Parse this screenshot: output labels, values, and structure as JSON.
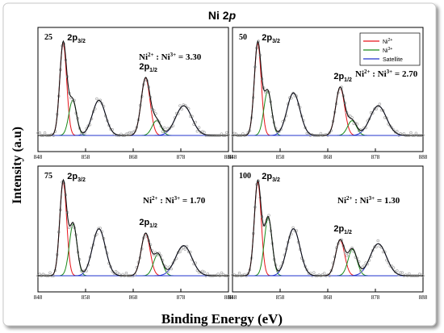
{
  "figure": {
    "title_main": "Ni 2",
    "title_italic": "p",
    "ylabel": "Intensity (a.u)",
    "xlabel": "Binding Energy (eV)"
  },
  "colors": {
    "ni2": "#e8141b",
    "ni3": "#1a8a1a",
    "satellite": "#2233cc",
    "envelope": "#111111",
    "baseline": "#cc33cc",
    "data": "#a8a8a8"
  },
  "legend": {
    "ni2_base": "Ni",
    "ni2_sup": "2+",
    "ni3_base": "Ni",
    "ni3_sup": "3+",
    "satellite": "Satellite"
  },
  "peak_labels": {
    "p32_main": "2p",
    "p32_sub": "3/2",
    "p12_main": "2p",
    "p12_sub": "1/2"
  },
  "chart_data": [
    {
      "type": "line",
      "panel": "25",
      "ratio_label": "Ni",
      "ratio_sup1": "2+",
      "ratio_mid": " : Ni",
      "ratio_sup2": "3+",
      "ratio_value": " = 3.30",
      "xlim": [
        848,
        888
      ],
      "xticks": [
        848,
        858,
        868,
        878,
        888
      ],
      "peaks": {
        "ni2": [
          {
            "center": 853.3,
            "height": 1.0,
            "fwhm": 1.7
          },
          {
            "center": 870.6,
            "height": 0.62,
            "fwhm": 2.2
          }
        ],
        "ni3": [
          {
            "center": 855.3,
            "height": 0.38,
            "fwhm": 1.9
          },
          {
            "center": 872.9,
            "height": 0.16,
            "fwhm": 2.2
          }
        ],
        "satellite": [
          {
            "center": 860.8,
            "height": 0.38,
            "fwhm": 3.2
          },
          {
            "center": 878.6,
            "height": 0.32,
            "fwhm": 4.0
          }
        ]
      }
    },
    {
      "type": "line",
      "panel": "50",
      "ratio_label": "Ni",
      "ratio_sup1": "2+",
      "ratio_mid": " : Ni",
      "ratio_sup2": "3+",
      "ratio_value": " = 2.70",
      "xlim": [
        848,
        888
      ],
      "xticks": [
        848,
        858,
        868,
        878,
        888
      ],
      "peaks": {
        "ni2": [
          {
            "center": 853.3,
            "height": 1.0,
            "fwhm": 1.7
          },
          {
            "center": 870.6,
            "height": 0.52,
            "fwhm": 2.2
          }
        ],
        "ni3": [
          {
            "center": 855.4,
            "height": 0.48,
            "fwhm": 1.9
          },
          {
            "center": 873.1,
            "height": 0.16,
            "fwhm": 2.2
          }
        ],
        "satellite": [
          {
            "center": 860.8,
            "height": 0.46,
            "fwhm": 3.2
          },
          {
            "center": 878.6,
            "height": 0.32,
            "fwhm": 4.0
          }
        ]
      }
    },
    {
      "type": "line",
      "panel": "75",
      "ratio_label": "Ni",
      "ratio_sup1": "2+",
      "ratio_mid": " : Ni",
      "ratio_sup2": "3+",
      "ratio_value": " = 1.70",
      "xlim": [
        848,
        888
      ],
      "xticks": [
        848,
        858,
        868,
        878,
        888
      ],
      "peaks": {
        "ni2": [
          {
            "center": 853.3,
            "height": 1.0,
            "fwhm": 1.7
          },
          {
            "center": 870.6,
            "height": 0.45,
            "fwhm": 2.2
          }
        ],
        "ni3": [
          {
            "center": 855.4,
            "height": 0.55,
            "fwhm": 1.9
          },
          {
            "center": 873.2,
            "height": 0.23,
            "fwhm": 2.2
          }
        ],
        "satellite": [
          {
            "center": 860.8,
            "height": 0.5,
            "fwhm": 3.2
          },
          {
            "center": 878.6,
            "height": 0.32,
            "fwhm": 4.0
          }
        ]
      }
    },
    {
      "type": "line",
      "panel": "100",
      "ratio_label": "Ni",
      "ratio_sup1": "2+",
      "ratio_mid": " : Ni",
      "ratio_sup2": "3+",
      "ratio_value": " = 1.30",
      "xlim": [
        848,
        888
      ],
      "xticks": [
        848,
        858,
        868,
        878,
        888
      ],
      "peaks": {
        "ni2": [
          {
            "center": 853.3,
            "height": 1.0,
            "fwhm": 1.7
          },
          {
            "center": 870.6,
            "height": 0.38,
            "fwhm": 2.2
          }
        ],
        "ni3": [
          {
            "center": 855.5,
            "height": 0.62,
            "fwhm": 1.9
          },
          {
            "center": 873.2,
            "height": 0.28,
            "fwhm": 2.2
          }
        ],
        "satellite": [
          {
            "center": 860.8,
            "height": 0.5,
            "fwhm": 3.2
          },
          {
            "center": 878.6,
            "height": 0.34,
            "fwhm": 4.0
          }
        ]
      }
    }
  ]
}
